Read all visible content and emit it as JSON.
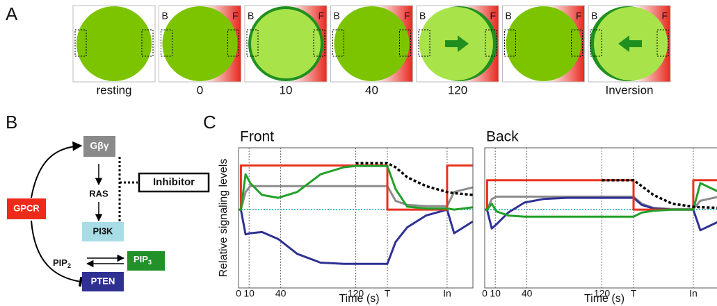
{
  "panel_labels": [
    "A",
    "B",
    "C"
  ],
  "panel_a": {
    "cells": [
      "resting",
      "0",
      "10",
      "40",
      "120",
      null,
      "Inversion"
    ],
    "back_letter": "B",
    "front_letter": "F"
  },
  "panel_b": {
    "gpcr": "GPCR",
    "gbg": "Gβγ",
    "ras": "RAS",
    "pi3k": "PI3K",
    "inhibitor": "Inhibitor",
    "pip2": {
      "text": "PIP",
      "sub": "2"
    },
    "pip3": {
      "text": "PIP",
      "sub": "3"
    },
    "pten": "PTEN"
  },
  "chart_data": [
    {
      "type": "line",
      "title": "Front",
      "y_label": "Relative signaling levels",
      "x_label": "Time (s)",
      "xlim": [
        0,
        100
      ],
      "ylim": [
        -1.33,
        1.05
      ],
      "xticks": [
        0,
        {
          "value": 4.5,
          "label": "10"
        },
        {
          "value": 18,
          "label": "40"
        },
        {
          "value": 50,
          "label": "120"
        },
        {
          "value": 63.5,
          "label": "T"
        },
        {
          "value": 89,
          "label": "In"
        }
      ],
      "x": [
        0,
        1,
        1,
        3,
        5,
        10,
        17,
        25,
        35,
        45,
        50,
        63.5,
        63.5,
        67,
        72,
        80,
        89,
        89,
        92,
        100
      ],
      "series": [
        {
          "color": "#17a2b8",
          "dash": "dotted",
          "values": [
            0,
            0,
            0,
            0,
            0,
            0,
            0,
            0,
            0,
            0,
            0,
            0,
            0,
            0,
            0,
            0,
            0,
            0,
            0,
            0
          ]
        },
        {
          "color": "#8c8c8c",
          "values": [
            0,
            0,
            0,
            0.3,
            0.4,
            0.4,
            0.4,
            0.4,
            0.4,
            0.4,
            0.4,
            0.4,
            0.4,
            0.15,
            0.08,
            0.06,
            0.06,
            0.06,
            0.3,
            0.38
          ]
        },
        {
          "color": "#2e3192",
          "values": [
            0,
            0,
            0,
            -0.42,
            -0.4,
            -0.38,
            -0.5,
            -0.75,
            -0.9,
            -0.92,
            -0.92,
            -0.92,
            -0.92,
            -0.55,
            -0.3,
            -0.1,
            0,
            0,
            -0.4,
            -0.2
          ]
        },
        {
          "color": "#e8321e",
          "values": [
            0,
            0,
            0.75,
            0.75,
            0.75,
            0.75,
            0.75,
            0.75,
            0.75,
            0.75,
            0.75,
            0.75,
            0,
            0,
            0,
            0,
            0,
            0.75,
            0.75,
            0.75
          ]
        },
        {
          "color": "#22a02a",
          "values": [
            0,
            0,
            0,
            0.6,
            0.45,
            0.25,
            0.2,
            0.3,
            0.6,
            0.72,
            0.74,
            0.74,
            0.74,
            0.35,
            0.05,
            0.02,
            0.02,
            0.02,
            0,
            0.04
          ]
        },
        {
          "color": "#000000",
          "dash": "dotted",
          "values": [
            null,
            null,
            null,
            null,
            null,
            null,
            null,
            null,
            null,
            null,
            0.79,
            0.79,
            0.79,
            0.72,
            0.55,
            0.4,
            0.3,
            0.3,
            0.28,
            0.25
          ]
        }
      ]
    },
    {
      "type": "line",
      "title": "Back",
      "x_label": "Time (s)",
      "xlim": [
        0,
        100
      ],
      "ylim": [
        -1.33,
        1.05
      ],
      "xticks": [
        0,
        {
          "value": 4.5,
          "label": "10"
        },
        {
          "value": 18,
          "label": "40"
        },
        {
          "value": 50,
          "label": "120"
        },
        {
          "value": 63.5,
          "label": "T"
        },
        {
          "value": 89,
          "label": "In"
        }
      ],
      "x": [
        0,
        1,
        1,
        3,
        5,
        10,
        17,
        25,
        35,
        45,
        50,
        63.5,
        63.5,
        67,
        72,
        80,
        89,
        89,
        92,
        100
      ],
      "series": [
        {
          "color": "#17a2b8",
          "dash": "dotted",
          "values": [
            0,
            0,
            0,
            0,
            0,
            0,
            0,
            0,
            0,
            0,
            0,
            0,
            0,
            0,
            0,
            0,
            0,
            0,
            0,
            0
          ]
        },
        {
          "color": "#8c8c8c",
          "values": [
            0,
            0,
            0,
            0.18,
            0.22,
            0.22,
            0.22,
            0.22,
            0.22,
            0.22,
            0.22,
            0.22,
            0.22,
            0.1,
            0.03,
            0.01,
            0.01,
            0.01,
            0.15,
            0.22
          ]
        },
        {
          "color": "#2e3192",
          "values": [
            0,
            0,
            0,
            -0.32,
            -0.25,
            -0.05,
            0.12,
            0.18,
            0.2,
            0.2,
            0.2,
            0.2,
            0.2,
            0.08,
            0.02,
            0,
            0,
            0,
            -0.35,
            -0.2
          ]
        },
        {
          "color": "#e8321e",
          "values": [
            0,
            0,
            0.5,
            0.5,
            0.5,
            0.5,
            0.5,
            0.5,
            0.5,
            0.5,
            0.5,
            0.5,
            0,
            0,
            0,
            0,
            0,
            0.5,
            0.5,
            0.5
          ]
        },
        {
          "color": "#22a02a",
          "values": [
            0,
            0,
            0,
            0.1,
            -0.03,
            -0.1,
            -0.12,
            -0.12,
            -0.12,
            -0.12,
            -0.12,
            -0.12,
            -0.12,
            -0.05,
            -0.02,
            0,
            0,
            0,
            0.45,
            0.3
          ]
        },
        {
          "color": "#000000",
          "dash": "dotted",
          "values": [
            null,
            null,
            null,
            null,
            null,
            null,
            null,
            null,
            null,
            null,
            0.5,
            0.5,
            0.5,
            0.4,
            0.25,
            0.1,
            0.05,
            0.05,
            0.04,
            0.03
          ]
        }
      ]
    }
  ]
}
